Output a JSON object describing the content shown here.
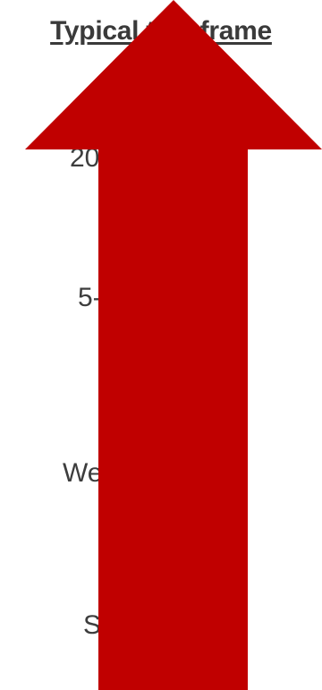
{
  "title": "Typical timeframe",
  "labels": [
    "20",
    "5-",
    "We",
    "S"
  ],
  "arrow": {
    "direction": "up",
    "color": "#c00000"
  }
}
